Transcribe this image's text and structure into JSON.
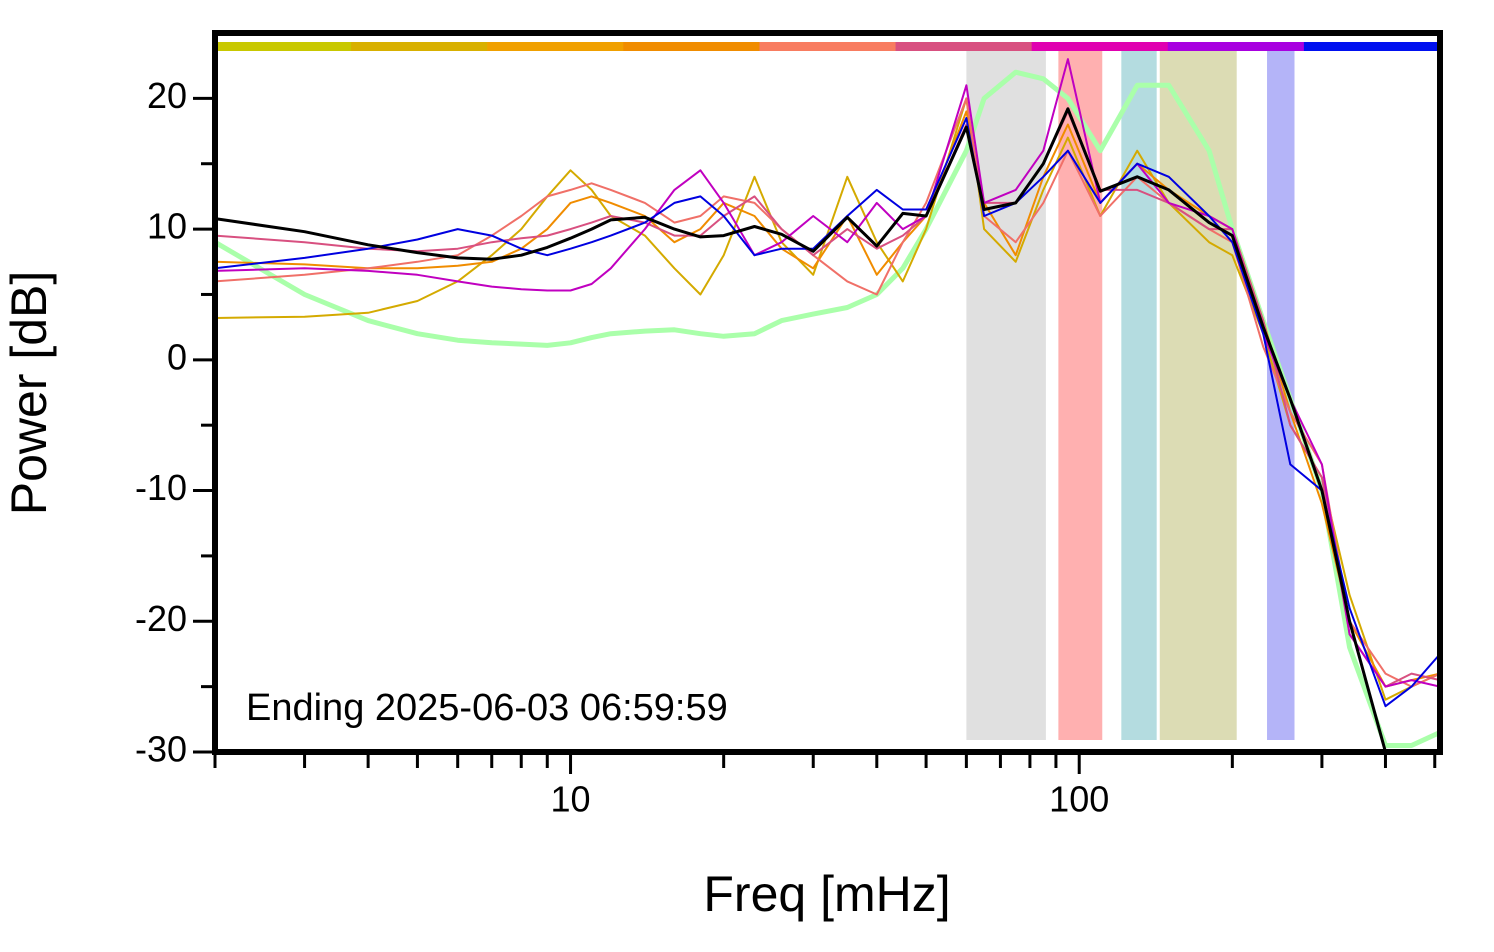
{
  "chart_data": {
    "type": "line",
    "x_label": "Freq [mHz]",
    "y_label": "Power [dB]",
    "annotation": "Ending 2025-06-03 06:59:59",
    "xlog": true,
    "xlim": [
      2,
      512
    ],
    "ylim": [
      -30,
      25
    ],
    "xticks": [
      10,
      100
    ],
    "xminor_ticks": [
      2,
      3,
      4,
      5,
      6,
      7,
      8,
      9,
      20,
      30,
      40,
      50,
      60,
      70,
      80,
      90,
      200,
      300,
      400,
      500
    ],
    "yticks": [
      -30,
      -20,
      -10,
      0,
      10,
      20
    ],
    "yminor_ticks": [
      -25,
      -15,
      -5,
      5,
      15
    ],
    "color_bar": [
      "#c8c800",
      "#d8b000",
      "#f0a000",
      "#f08c00",
      "#f87c60",
      "#d85080",
      "#e000b0",
      "#a800e0",
      "#0010f0"
    ],
    "bands": [
      {
        "x0": 60,
        "x1": 86,
        "color": "#e0e0e0"
      },
      {
        "x0": 91,
        "x1": 111,
        "color": "#ffb0b0"
      },
      {
        "x0": 121,
        "x1": 142,
        "color": "#b4dce0"
      },
      {
        "x0": 144,
        "x1": 204,
        "color": "#dcdcb4"
      },
      {
        "x0": 234,
        "x1": 265,
        "color": "#b4b4f8"
      }
    ],
    "x": [
      2,
      3,
      4,
      5,
      6,
      7,
      8,
      9,
      10,
      11,
      12,
      14,
      16,
      18,
      20,
      23,
      26,
      30,
      35,
      40,
      45,
      50,
      60,
      65,
      75,
      85,
      95,
      110,
      130,
      150,
      180,
      200,
      230,
      260,
      300,
      340,
      400,
      450,
      512
    ],
    "series": [
      {
        "color": "#aaffaa",
        "width": 5,
        "values": [
          9,
          5,
          3,
          2,
          1.5,
          1.3,
          1.2,
          1.1,
          1.3,
          1.7,
          2,
          2.2,
          2.3,
          2,
          1.8,
          2,
          3,
          3.5,
          4,
          5,
          7,
          10,
          16,
          20,
          22,
          21.5,
          20,
          16,
          21,
          21,
          16,
          10,
          3,
          -3,
          -10,
          -22,
          -29.5,
          -29.5,
          -28.5
        ]
      },
      {
        "color": "#d4aa00",
        "width": 2,
        "values": [
          3.2,
          3.3,
          3.6,
          4.5,
          6,
          8,
          10,
          12.5,
          14.5,
          13,
          11,
          9.5,
          7,
          5,
          8,
          14,
          9,
          6.5,
          14,
          9,
          6,
          10,
          20,
          10,
          7.5,
          13,
          17,
          11,
          16,
          12,
          9,
          8,
          2,
          -5,
          -9,
          -18,
          -26,
          -25,
          -24
        ]
      },
      {
        "color": "#f08c00",
        "width": 2,
        "values": [
          7.5,
          7.3,
          7,
          7,
          7.2,
          7.5,
          8.5,
          10,
          12,
          12.5,
          12,
          11,
          9,
          10,
          12,
          11,
          8.5,
          7,
          11,
          6.5,
          9,
          11,
          19,
          12,
          8,
          14,
          18,
          12,
          15,
          13,
          11,
          10,
          3,
          -4,
          -11,
          -20,
          -25,
          -24.5,
          -24
        ]
      },
      {
        "color": "#f07068",
        "width": 2,
        "values": [
          6,
          6.5,
          7,
          7.5,
          8,
          9.5,
          11,
          12.5,
          13,
          13.5,
          13,
          12,
          10.5,
          11,
          12.5,
          12,
          10,
          8,
          6,
          5,
          9,
          12,
          20,
          11,
          9,
          12,
          16,
          11,
          14,
          12,
          10,
          9,
          1,
          -4,
          -8,
          -20,
          -24,
          -25,
          -24
        ]
      },
      {
        "color": "#d85080",
        "width": 2,
        "values": [
          9.5,
          9,
          8.5,
          8.3,
          8.5,
          9,
          9.3,
          9.5,
          10,
          10.5,
          11,
          10.5,
          9.5,
          9.5,
          11,
          12.5,
          10,
          8,
          10,
          8.5,
          9.5,
          11,
          18,
          12,
          12,
          15,
          19,
          13,
          13,
          12,
          10,
          10,
          3,
          -5,
          -9,
          -21,
          -25,
          -24,
          -24.5
        ]
      },
      {
        "color": "#c000c0",
        "width": 2,
        "values": [
          6.8,
          7,
          6.8,
          6.5,
          6,
          5.6,
          5.4,
          5.3,
          5.3,
          5.8,
          7,
          10,
          13,
          14.5,
          12,
          8,
          9,
          11,
          9,
          12,
          10,
          11,
          21,
          12,
          13,
          16,
          23,
          12,
          15,
          12,
          11,
          10,
          2,
          -3,
          -8,
          -21,
          -25,
          -24.5,
          -25
        ]
      },
      {
        "color": "#0000e0",
        "width": 2,
        "values": [
          7,
          7.8,
          8.5,
          9.2,
          10,
          9.5,
          8.5,
          8,
          8.5,
          9,
          9.5,
          10.5,
          12,
          12.5,
          11,
          8,
          8.5,
          8.5,
          11,
          13,
          11.5,
          11.5,
          18.5,
          11,
          12,
          14,
          16,
          12,
          15,
          14,
          11,
          9,
          2,
          -8,
          -10,
          -19,
          -26.5,
          -25,
          -22.5
        ]
      },
      {
        "color": "#000000",
        "width": 3,
        "values": [
          10.8,
          9.8,
          8.8,
          8.2,
          7.8,
          7.7,
          8,
          8.6,
          9.3,
          10,
          10.7,
          10.9,
          10,
          9.4,
          9.5,
          10.2,
          9.6,
          8.3,
          10.9,
          8.7,
          11.2,
          11,
          17.8,
          11.5,
          12,
          15,
          19.2,
          12.9,
          14,
          13,
          10.5,
          9.5,
          2.5,
          -3,
          -10,
          -20,
          -30,
          -30,
          -30
        ]
      }
    ]
  }
}
